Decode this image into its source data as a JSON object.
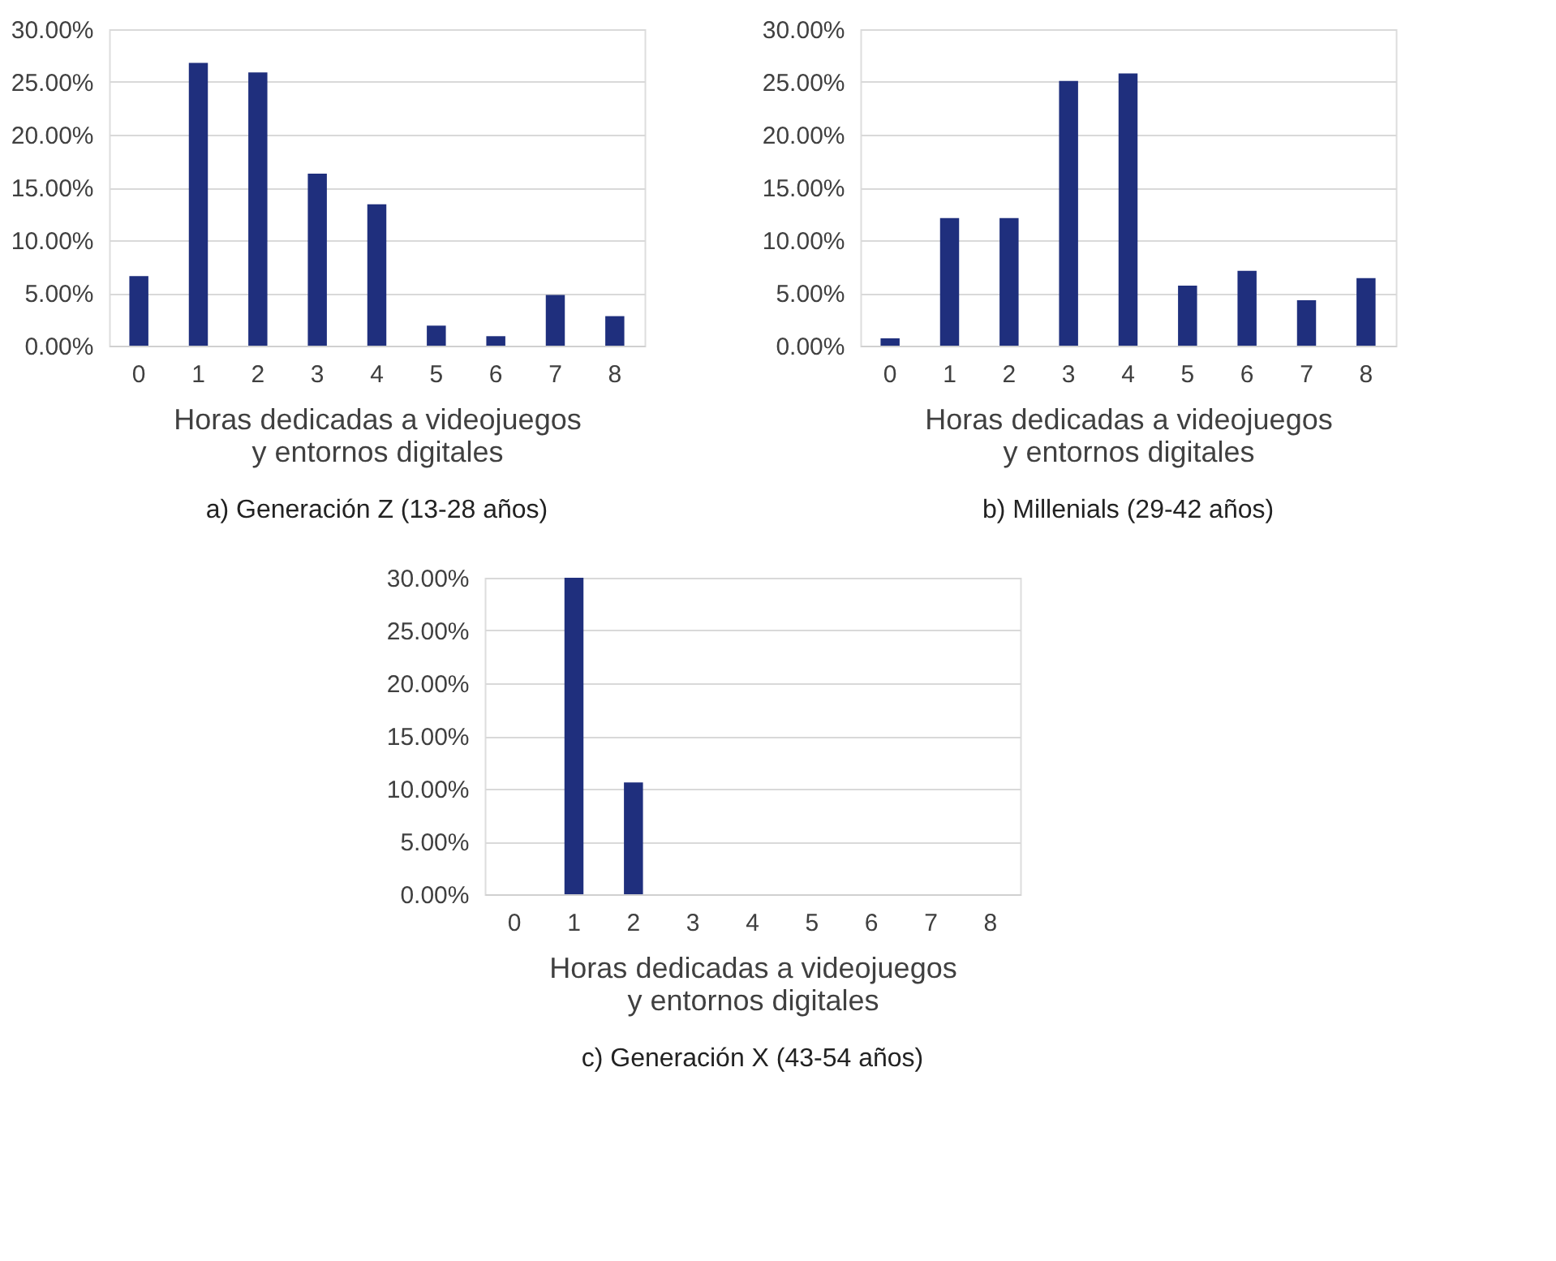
{
  "chart_data": [
    {
      "type": "bar",
      "title": "a) Generación Z (13-28 años)",
      "xlabel": "Horas dedicadas a videojuegos y entornos digitales",
      "categories": [
        "0",
        "1",
        "2",
        "3",
        "4",
        "5",
        "6",
        "7",
        "8"
      ],
      "values": [
        6.6,
        26.8,
        25.9,
        16.3,
        13.4,
        1.9,
        0.9,
        4.8,
        2.8
      ],
      "color": "#1f2f7d",
      "ylim": [
        0,
        30
      ],
      "yticks": [
        {
          "value": 0,
          "label": "0.00%"
        },
        {
          "value": 5,
          "label": "5.00%"
        },
        {
          "value": 10,
          "label": "10.00%"
        },
        {
          "value": 15,
          "label": "15.00%"
        },
        {
          "value": 20,
          "label": "20.00%"
        },
        {
          "value": 25,
          "label": "25.00%"
        },
        {
          "value": 30,
          "label": "30.00%"
        }
      ],
      "grid": "y"
    },
    {
      "type": "bar",
      "title": "b) Millenials (29-42 años)",
      "xlabel": "Horas dedicadas a videojuegos y entornos digitales",
      "categories": [
        "0",
        "1",
        "2",
        "3",
        "4",
        "5",
        "6",
        "7",
        "8"
      ],
      "values": [
        0.7,
        12.1,
        12.1,
        25.1,
        25.8,
        5.7,
        7.1,
        4.3,
        6.4
      ],
      "color": "#1f2f7d",
      "ylim": [
        0,
        30
      ],
      "yticks": [
        {
          "value": 0,
          "label": "0.00%"
        },
        {
          "value": 5,
          "label": "5.00%"
        },
        {
          "value": 10,
          "label": "10.00%"
        },
        {
          "value": 15,
          "label": "15.00%"
        },
        {
          "value": 20,
          "label": "20.00%"
        },
        {
          "value": 25,
          "label": "25.00%"
        },
        {
          "value": 30,
          "label": "30.00%"
        }
      ],
      "grid": "y"
    },
    {
      "type": "bar",
      "title": "c) Generación X (43-54 años)",
      "xlabel": "Horas dedicadas a videojuegos y entornos digitales",
      "categories": [
        "0",
        "1",
        "2",
        "3",
        "4",
        "5",
        "6",
        "7",
        "8"
      ],
      "values": [
        0,
        30,
        10.6,
        0,
        0,
        0,
        0,
        0,
        0
      ],
      "color": "#1f2f7d",
      "ylim": [
        0,
        30
      ],
      "yticks": [
        {
          "value": 0,
          "label": "0.00%"
        },
        {
          "value": 5,
          "label": "5.00%"
        },
        {
          "value": 10,
          "label": "10.00%"
        },
        {
          "value": 15,
          "label": "15.00%"
        },
        {
          "value": 20,
          "label": "20.00%"
        },
        {
          "value": 25,
          "label": "25.00%"
        },
        {
          "value": 30,
          "label": "30.00%"
        }
      ],
      "grid": "y"
    }
  ]
}
